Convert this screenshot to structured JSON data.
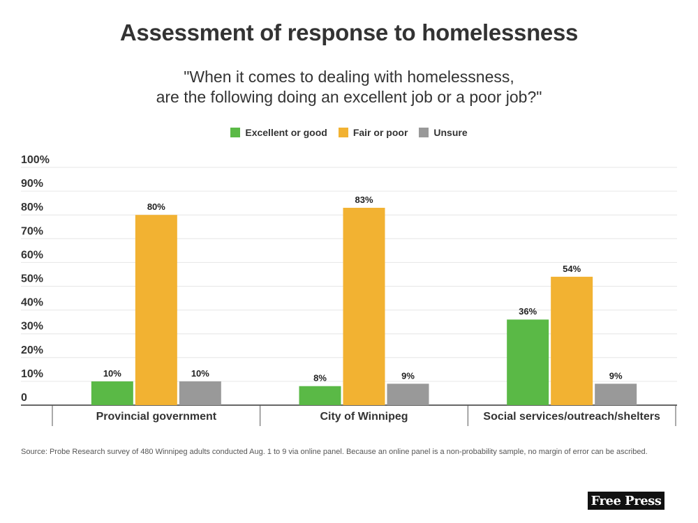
{
  "title": "Assessment of response to homelessness",
  "subtitle": [
    "\"When it comes to dealing with homelessness,",
    "are the following doing an excellent job or a poor job?\""
  ],
  "source": "Source: Probe Research survey of 480 Winnipeg adults conducted Aug. 1 to 9 via online panel. Because an online panel is a non-probability sample, no margin of error can be ascribed.",
  "logo_text": "Free Press",
  "colors": {
    "excellent": "#5ab946",
    "fair": "#f2b232",
    "unsure": "#999999",
    "grid": "#e6e6e6",
    "axis": "#333333"
  },
  "chart_data": {
    "type": "bar",
    "title": "Assessment of response to homelessness",
    "categories": [
      "Provincial government",
      "City of Winnipeg",
      "Social services/outreach/shelters"
    ],
    "series": [
      {
        "name": "Excellent or good",
        "values": [
          10,
          8,
          36
        ],
        "labels": [
          "10%",
          "8%",
          "36%"
        ]
      },
      {
        "name": "Fair or poor",
        "values": [
          80,
          83,
          54
        ],
        "labels": [
          "80%",
          "83%",
          "54%"
        ]
      },
      {
        "name": "Unsure",
        "values": [
          10,
          9,
          9
        ],
        "labels": [
          "10%",
          "9%",
          "9%"
        ]
      }
    ],
    "ylim": [
      0,
      100
    ],
    "yticks": [
      "0",
      "10%",
      "20%",
      "30%",
      "40%",
      "50%",
      "60%",
      "70%",
      "80%",
      "90%",
      "100%"
    ],
    "grid": true,
    "legend": "top-center"
  }
}
